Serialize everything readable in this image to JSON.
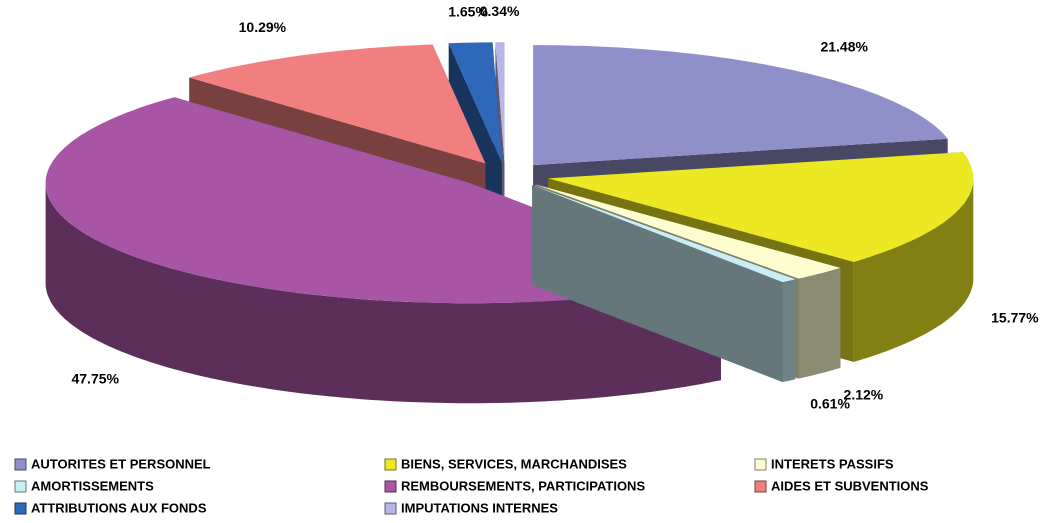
{
  "chart_data": {
    "type": "pie3d",
    "categories": [
      "AUTORITES ET PERSONNEL",
      "BIENS, SERVICES, MARCHANDISES",
      "INTERETS PASSIFS",
      "AMORTISSEMENTS",
      "REMBOURSEMENTS, PARTICIPATIONS",
      "AIDES ET SUBVENTIONS",
      "ATTRIBUTIONS AUX FONDS",
      "IMPUTATIONS INTERNES"
    ],
    "values": [
      21.48,
      15.77,
      2.12,
      0.61,
      47.75,
      10.29,
      1.65,
      0.34
    ],
    "value_labels": [
      "21.48%",
      "15.77%",
      "2.12%",
      "0.61%",
      "47.75%",
      "10.29%",
      "1.65%",
      "0.34%"
    ],
    "colors": [
      "#8f8fc9",
      "#ece823",
      "#fdfdd0",
      "#c9eef6",
      "#a855a6",
      "#f27f7f",
      "#2f68b8",
      "#b7b6e6"
    ],
    "legend": "bottom"
  }
}
